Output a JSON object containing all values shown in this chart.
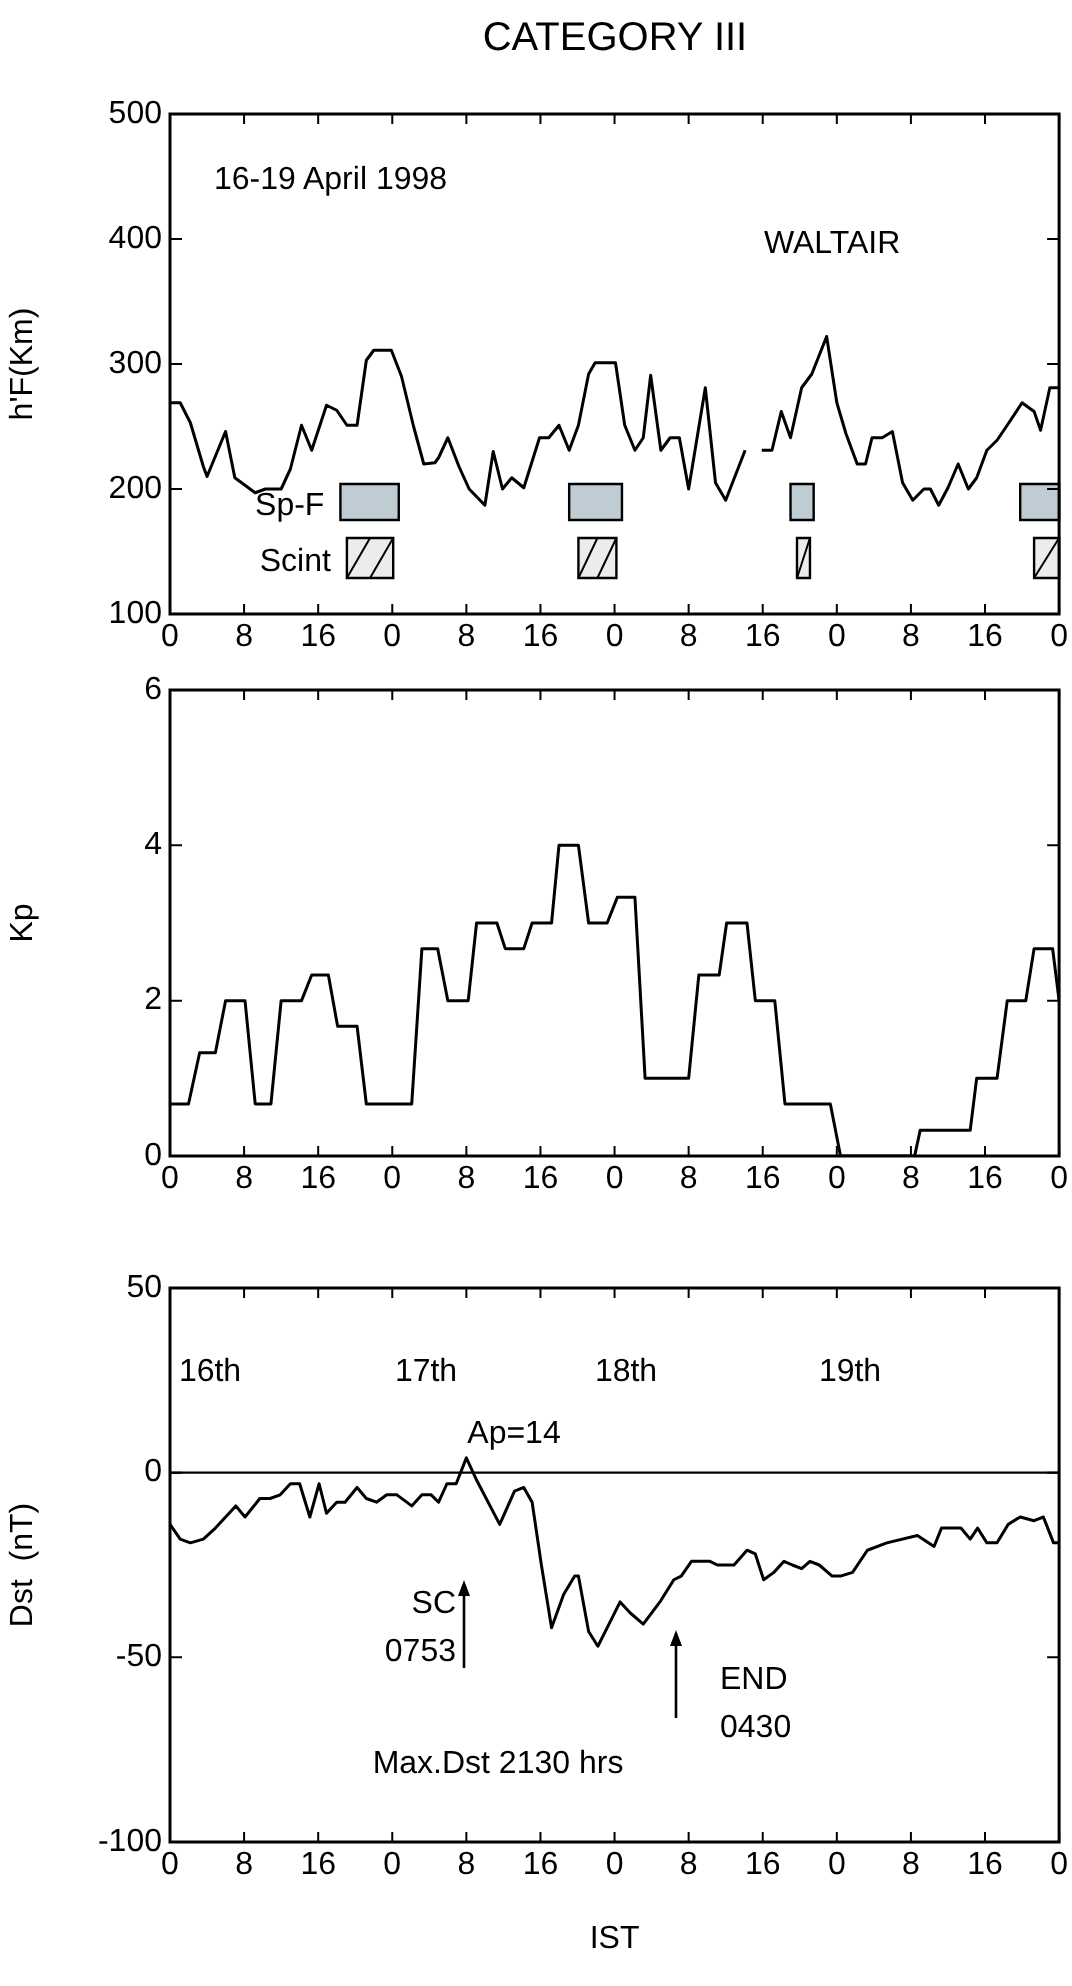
{
  "chart_data": [
    {
      "type": "line",
      "title": "CATEGORY III",
      "ylabel": "h'F(Km)",
      "ylim": [
        100,
        500
      ],
      "yticks": [
        100,
        200,
        300,
        400,
        500
      ],
      "xlim": [
        "1998-04-16T00:00",
        "1998-04-20T00:00"
      ],
      "xticks": [
        {
          "value": "1998-04-16T00:00",
          "label": "0"
        },
        {
          "value": "1998-04-16T08:00",
          "label": "8"
        },
        {
          "value": "1998-04-16T16:00",
          "label": "16"
        },
        {
          "value": "1998-04-17T00:00",
          "label": "0"
        },
        {
          "value": "1998-04-17T08:00",
          "label": "8"
        },
        {
          "value": "1998-04-17T16:00",
          "label": "16"
        },
        {
          "value": "1998-04-18T00:00",
          "label": "0"
        },
        {
          "value": "1998-04-18T08:00",
          "label": "8"
        },
        {
          "value": "1998-04-18T16:00",
          "label": "16"
        },
        {
          "value": "1998-04-19T00:00",
          "label": "0"
        },
        {
          "value": "1998-04-19T08:00",
          "label": "8"
        },
        {
          "value": "1998-04-19T16:00",
          "label": "16"
        },
        {
          "value": "1998-04-20T00:00",
          "label": "0"
        }
      ],
      "annotations": [
        "16-19 April 1998",
        "WALTAIR"
      ],
      "bands": [
        {
          "axis": "x",
          "from": "1998-04-16T18:24",
          "to": "1998-04-17T00:42",
          "label": "Sp-F",
          "color": "#c0ccd4"
        },
        {
          "axis": "x",
          "from": "1998-04-17T19:06",
          "to": "1998-04-18T00:48",
          "label": null,
          "color": "#c0ccd4"
        },
        {
          "axis": "x",
          "from": "1998-04-18T19:00",
          "to": "1998-04-18T21:30",
          "label": null,
          "color": "#c0ccd4"
        },
        {
          "axis": "x",
          "from": "1998-04-19T19:48",
          "to": "1998-04-20T00:00",
          "label": null,
          "color": "#c0ccd4"
        },
        {
          "axis": "x",
          "from": "1998-04-16T19:06",
          "to": "1998-04-17T00:06",
          "label": "Scint",
          "color": "#ececec"
        },
        {
          "axis": "x",
          "from": "1998-04-17T20:06",
          "to": "1998-04-18T00:12",
          "label": null,
          "color": "#ececec"
        },
        {
          "axis": "x",
          "from": "1998-04-18T19:42",
          "to": "1998-04-18T21:06",
          "label": null,
          "color": "#ececec"
        },
        {
          "axis": "x",
          "from": "1998-04-19T21:18",
          "to": "1998-04-20T00:00",
          "label": null,
          "color": "#ececec"
        }
      ],
      "series": [
        {
          "color": "#000000",
          "x": [
            "1998-04-16T00:00",
            "1998-04-16T01:06",
            "1998-04-16T02:12",
            "1998-04-16T03:36",
            "1998-04-16T04:00",
            "1998-04-16T06:00",
            "1998-04-16T07:00",
            "1998-04-16T09:12",
            "1998-04-16T10:18",
            "1998-04-16T12:00",
            "1998-04-16T13:00",
            "1998-04-16T14:12",
            "1998-04-16T15:18",
            "1998-04-16T16:54",
            "1998-04-16T18:00",
            "1998-04-16T19:06",
            "1998-04-16T20:12",
            "1998-04-16T21:12",
            "1998-04-16T22:00",
            "1998-04-16T23:54",
            "1998-04-17T01:00",
            "1998-04-17T02:18",
            "1998-04-17T03:24",
            "1998-04-17T04:36",
            "1998-04-17T05:00",
            "1998-04-17T06:00",
            "1998-04-17T07:12",
            "1998-04-17T08:18",
            "1998-04-17T10:00",
            "1998-04-17T10:54",
            "1998-04-17T11:54",
            "1998-04-17T12:54",
            "1998-04-17T14:12",
            "1998-04-17T15:54",
            "1998-04-17T16:54",
            "1998-04-17T18:00",
            "1998-04-17T19:06",
            "1998-04-17T20:06",
            "1998-04-17T21:12",
            "1998-04-17T21:54",
            "1998-04-18T00:06",
            "1998-04-18T01:06",
            "1998-04-18T02:12",
            "1998-04-18T03:06",
            "1998-04-18T03:54",
            "1998-04-18T05:00",
            "1998-04-18T06:00",
            "1998-04-18T07:00",
            "1998-04-18T08:00",
            "1998-04-18T09:48",
            "1998-04-18T10:54",
            "1998-04-18T12:00",
            "1998-04-18T14:06",
            "1998-04-18T15:00",
            "1998-04-18T15:54",
            "1998-04-18T17:00",
            "1998-04-18T18:00",
            "1998-04-18T19:00",
            "1998-04-18T20:12",
            "1998-04-18T21:18",
            "1998-04-18T22:54",
            "1998-04-19T00:00",
            "1998-04-19T01:00",
            "1998-04-19T02:12",
            "1998-04-19T03:06",
            "1998-04-19T03:48",
            "1998-04-19T04:54",
            "1998-04-19T06:00",
            "1998-04-19T07:06",
            "1998-04-19T08:12",
            "1998-04-19T09:24",
            "1998-04-19T10:06",
            "1998-04-19T11:00",
            "1998-04-19T12:00",
            "1998-04-19T13:06",
            "1998-04-19T14:12",
            "1998-04-19T15:06",
            "1998-04-19T16:12",
            "1998-04-19T17:18",
            "1998-04-19T18:24",
            "1998-04-19T20:00",
            "1998-04-19T21:18",
            "1998-04-19T22:00",
            "1998-04-19T23:00",
            "1998-04-20T00:00"
          ],
          "values": [
            269,
            269,
            253,
            218,
            210,
            246,
            209,
            197,
            200,
            200,
            216,
            251,
            231,
            267,
            263,
            251,
            251,
            303,
            311,
            311,
            290,
            250,
            220,
            221,
            225,
            241,
            218,
            200,
            187,
            230,
            200,
            209,
            201,
            241,
            241,
            251,
            231,
            251,
            292,
            301,
            301,
            251,
            231,
            241,
            291,
            231,
            241,
            241,
            200,
            281,
            205,
            191,
            231,
            null,
            231,
            231,
            262,
            241,
            281,
            292,
            322,
            269,
            244,
            220,
            220,
            241,
            241,
            246,
            205,
            191,
            200,
            200,
            187,
            201,
            220,
            200,
            209,
            231,
            239,
            251,
            269,
            262,
            247,
            281,
            281
          ]
        }
      ]
    },
    {
      "type": "line",
      "ylabel": "Kp",
      "ylim": [
        0,
        6
      ],
      "yticks": [
        0,
        2,
        4,
        6
      ],
      "xlim": [
        "1998-04-16T00:00",
        "1998-04-20T00:00"
      ],
      "xticks": [
        {
          "value": "1998-04-16T00:00",
          "label": "0"
        },
        {
          "value": "1998-04-16T08:00",
          "label": "8"
        },
        {
          "value": "1998-04-16T16:00",
          "label": "16"
        },
        {
          "value": "1998-04-17T00:00",
          "label": "0"
        },
        {
          "value": "1998-04-17T08:00",
          "label": "8"
        },
        {
          "value": "1998-04-17T16:00",
          "label": "16"
        },
        {
          "value": "1998-04-18T00:00",
          "label": "0"
        },
        {
          "value": "1998-04-18T08:00",
          "label": "8"
        },
        {
          "value": "1998-04-18T16:00",
          "label": "16"
        },
        {
          "value": "1998-04-19T00:00",
          "label": "0"
        },
        {
          "value": "1998-04-19T08:00",
          "label": "8"
        },
        {
          "value": "1998-04-19T16:00",
          "label": "16"
        },
        {
          "value": "1998-04-20T00:00",
          "label": "0"
        }
      ],
      "series": [
        {
          "color": "#000000",
          "x": [
            "1998-04-16T00:00",
            "1998-04-16T02:00",
            "1998-04-16T03:12",
            "1998-04-16T04:54",
            "1998-04-16T06:00",
            "1998-04-16T08:06",
            "1998-04-16T09:12",
            "1998-04-16T10:54",
            "1998-04-16T12:00",
            "1998-04-16T14:12",
            "1998-04-16T15:18",
            "1998-04-16T17:06",
            "1998-04-16T18:06",
            "1998-04-16T20:12",
            "1998-04-16T21:12",
            "1998-04-17T02:06",
            "1998-04-17T03:12",
            "1998-04-17T04:54",
            "1998-04-17T06:00",
            "1998-04-17T08:12",
            "1998-04-17T09:06",
            "1998-04-17T11:18",
            "1998-04-17T12:12",
            "1998-04-17T14:12",
            "1998-04-17T15:06",
            "1998-04-17T17:12",
            "1998-04-17T18:00",
            "1998-04-17T20:06",
            "1998-04-17T21:12",
            "1998-04-17T23:12",
            "1998-04-18T00:18",
            "1998-04-18T02:12",
            "1998-04-18T03:18",
            "1998-04-18T08:00",
            "1998-04-18T09:06",
            "1998-04-18T11:18",
            "1998-04-18T12:06",
            "1998-04-18T14:18",
            "1998-04-18T15:12",
            "1998-04-18T17:18",
            "1998-04-18T18:24",
            "1998-04-18T23:18",
            "1998-04-19T00:24",
            "1998-04-19T08:24",
            "1998-04-19T09:00",
            "1998-04-19T14:24",
            "1998-04-19T15:06",
            "1998-04-19T17:18",
            "1998-04-19T18:24",
            "1998-04-19T20:24",
            "1998-04-19T21:18",
            "1998-04-19T23:18",
            "1998-04-20T00:00"
          ],
          "values": [
            0.67,
            0.67,
            1.33,
            1.33,
            2,
            2,
            0.67,
            0.67,
            2,
            2,
            2.33,
            2.33,
            1.67,
            1.67,
            0.67,
            0.67,
            2.67,
            2.67,
            2,
            2,
            3,
            3,
            2.67,
            2.67,
            3,
            3,
            4,
            4,
            3,
            3,
            3.33,
            3.33,
            1,
            1,
            2.33,
            2.33,
            3,
            3,
            2,
            2,
            0.67,
            0.67,
            0,
            0,
            0.33,
            0.33,
            1,
            1,
            2,
            2,
            2.67,
            2.67,
            2
          ]
        }
      ]
    },
    {
      "type": "line",
      "ylabel": "Dst  (nT)",
      "xlabel": "IST",
      "ylim": [
        -100,
        50
      ],
      "yticks": [
        -100,
        -50,
        0,
        50
      ],
      "xlim": [
        "1998-04-16T00:00",
        "1998-04-20T00:00"
      ],
      "xticks": [
        {
          "value": "1998-04-16T00:00",
          "label": "0"
        },
        {
          "value": "1998-04-16T08:00",
          "label": "8"
        },
        {
          "value": "1998-04-16T16:00",
          "label": "16"
        },
        {
          "value": "1998-04-17T00:00",
          "label": "0"
        },
        {
          "value": "1998-04-17T08:00",
          "label": "8"
        },
        {
          "value": "1998-04-17T16:00",
          "label": "16"
        },
        {
          "value": "1998-04-18T00:00",
          "label": "0"
        },
        {
          "value": "1998-04-18T08:00",
          "label": "8"
        },
        {
          "value": "1998-04-18T16:00",
          "label": "16"
        },
        {
          "value": "1998-04-19T00:00",
          "label": "0"
        },
        {
          "value": "1998-04-19T08:00",
          "label": "8"
        },
        {
          "value": "1998-04-19T16:00",
          "label": "16"
        },
        {
          "value": "1998-04-20T00:00",
          "label": "0"
        }
      ],
      "ref_lines": [
        {
          "axis": "y",
          "value": 0
        }
      ],
      "annotations": [
        "16th",
        "17th",
        "18th",
        "19th",
        "Ap=14",
        "SC\n0753",
        "END\n0430",
        "Max.Dst 2130 hrs"
      ],
      "series": [
        {
          "color": "#000000",
          "x": [
            "1998-04-16T00:00",
            "1998-04-16T01:06",
            "1998-04-16T02:12",
            "1998-04-16T03:36",
            "1998-04-16T04:54",
            "1998-04-16T07:06",
            "1998-04-16T08:06",
            "1998-04-16T09:42",
            "1998-04-16T10:48",
            "1998-04-16T11:54",
            "1998-04-16T13:00",
            "1998-04-16T14:00",
            "1998-04-16T15:06",
            "1998-04-16T16:06",
            "1998-04-16T16:54",
            "1998-04-16T18:00",
            "1998-04-16T18:54",
            "1998-04-16T20:12",
            "1998-04-16T21:12",
            "1998-04-16T22:18",
            "1998-04-16T23:24",
            "1998-04-17T00:30",
            "1998-04-17T02:06",
            "1998-04-17T03:12",
            "1998-04-17T04:12",
            "1998-04-17T05:00",
            "1998-04-17T05:54",
            "1998-04-17T06:54",
            "1998-04-17T08:00",
            "1998-04-17T09:06",
            "1998-04-17T11:36",
            "1998-04-17T13:12",
            "1998-04-17T14:12",
            "1998-04-17T15:06",
            "1998-04-17T16:06",
            "1998-04-17T17:12",
            "1998-04-17T18:30",
            "1998-04-17T19:42",
            "1998-04-17T20:06",
            "1998-04-17T21:12",
            "1998-04-17T22:12",
            "1998-04-17T23:24",
            "1998-04-18T00:36",
            "1998-04-18T01:42",
            "1998-04-18T03:06",
            "1998-04-18T04:54",
            "1998-04-18T06:24",
            "1998-04-18T07:12",
            "1998-04-18T08:18",
            "1998-04-18T10:18",
            "1998-04-18T11:06",
            "1998-04-18T12:54",
            "1998-04-18T14:18",
            "1998-04-18T15:12",
            "1998-04-18T16:06",
            "1998-04-18T17:12",
            "1998-04-18T18:18",
            "1998-04-18T19:12",
            "1998-04-18T20:12",
            "1998-04-18T21:06",
            "1998-04-18T22:06",
            "1998-04-18T23:30",
            "1998-04-19T00:24",
            "1998-04-19T01:42",
            "1998-04-19T03:18",
            "1998-04-19T05:24",
            "1998-04-19T08:42",
            "1998-04-19T10:30",
            "1998-04-19T11:18",
            "1998-04-19T13:24",
            "1998-04-19T14:24",
            "1998-04-19T15:12",
            "1998-04-19T16:12",
            "1998-04-19T17:18",
            "1998-04-19T18:30",
            "1998-04-19T19:48",
            "1998-04-19T21:18",
            "1998-04-19T22:18",
            "1998-04-19T23:24",
            "1998-04-20T00:00"
          ],
          "values": [
            -14,
            -18,
            -19,
            -18,
            -15,
            -9,
            -12,
            -7,
            -7,
            -6,
            -3,
            -3,
            -12,
            -3,
            -11,
            -8,
            -8,
            -4,
            -7,
            -8,
            -6,
            -6,
            -9,
            -6,
            -6,
            -8,
            -3,
            -3,
            4,
            -2,
            -14,
            -5,
            -4,
            -8,
            -25,
            -42,
            -33,
            -28,
            -28,
            -43,
            -47,
            -41,
            -35,
            -38,
            -41,
            -35,
            -29,
            -28,
            -24,
            -24,
            -25,
            -25,
            -21,
            -22,
            -29,
            -27,
            -24,
            -25,
            -26,
            -24,
            -25,
            -28,
            -28,
            -27,
            -21,
            -19,
            -17,
            -20,
            -15,
            -15,
            -18,
            -15,
            -19,
            -19,
            -14,
            -12,
            -13,
            -12,
            -19,
            -19
          ]
        }
      ]
    }
  ]
}
